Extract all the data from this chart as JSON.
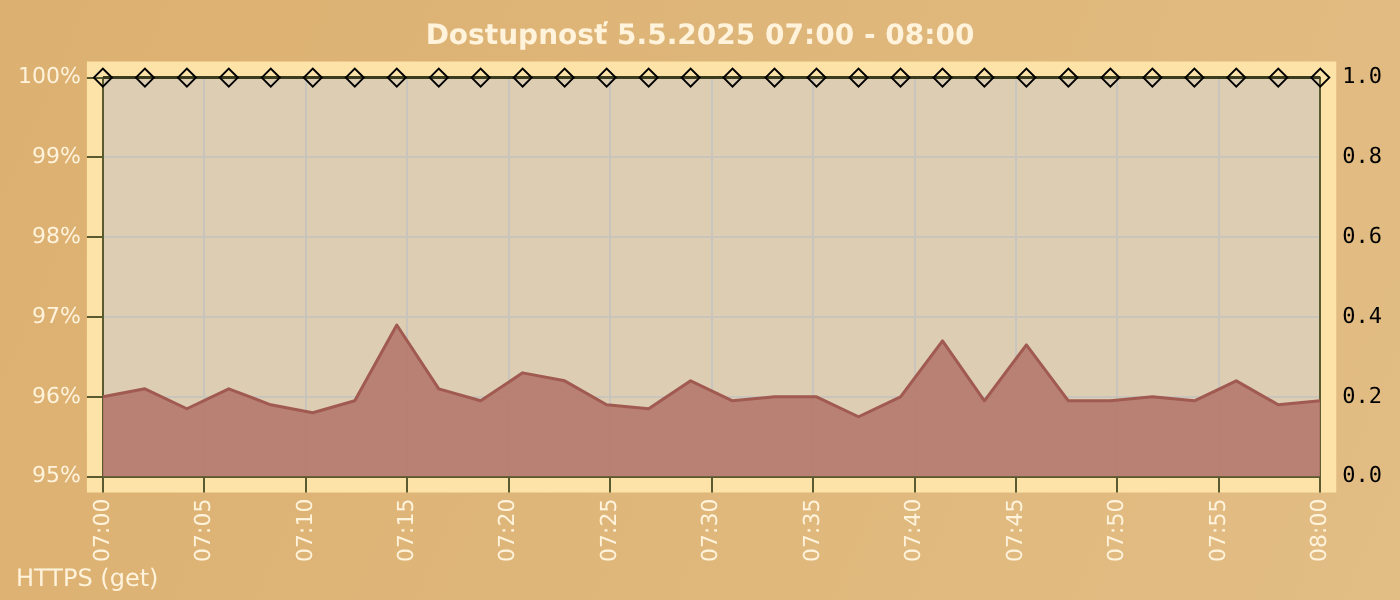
{
  "chart_data": {
    "type": "line",
    "title": "Dostupnosť 5.5.2025 07:00 - 08:00",
    "annotations": [
      "HTTPS (get)"
    ],
    "x": [
      7,
      7.0345,
      7.069,
      7.1034,
      7.1379,
      7.1724,
      7.2069,
      7.2414,
      7.2759,
      7.3103,
      7.3448,
      7.3793,
      7.4138,
      7.4483,
      7.4828,
      7.5172,
      7.5517,
      7.5862,
      7.6207,
      7.6552,
      7.6897,
      7.7241,
      7.7586,
      7.7931,
      7.8276,
      7.8621,
      7.8966,
      7.931,
      7.9655,
      8
    ],
    "series": [
      {
        "axis": "y",
        "marker": "diamond",
        "color": "#3c3c1e",
        "values": [
          100,
          100,
          100,
          100,
          100,
          100,
          100,
          100,
          100,
          100,
          100,
          100,
          100,
          100,
          100,
          100,
          100,
          100,
          100,
          100,
          100,
          100,
          100,
          100,
          100,
          100,
          100,
          100,
          100,
          100
        ]
      },
      {
        "type": "area",
        "axis": "y2",
        "marker": "none",
        "color": "#b5796c",
        "values": [
          0.2,
          0.22,
          0.17,
          0.22,
          0.18,
          0.16,
          0.19,
          0.38,
          0.22,
          0.19,
          0.26,
          0.24,
          0.18,
          0.17,
          0.24,
          0.19,
          0.2,
          0.2,
          0.15,
          0.2,
          0.34,
          0.19,
          0.33,
          0.19,
          0.19,
          0.2,
          0.19,
          0.24,
          0.18,
          0.19
        ]
      }
    ],
    "xlim": [
      7,
      8
    ],
    "xticks": [
      {
        "value": 7,
        "label": "07:00"
      },
      {
        "value": 7.0833,
        "label": "07:05"
      },
      {
        "value": 7.1667,
        "label": "07:10"
      },
      {
        "value": 7.25,
        "label": "07:15"
      },
      {
        "value": 7.3333,
        "label": "07:20"
      },
      {
        "value": 7.4167,
        "label": "07:25"
      },
      {
        "value": 7.5,
        "label": "07:30"
      },
      {
        "value": 7.5833,
        "label": "07:35"
      },
      {
        "value": 7.6667,
        "label": "07:40"
      },
      {
        "value": 7.75,
        "label": "07:45"
      },
      {
        "value": 7.8333,
        "label": "07:50"
      },
      {
        "value": 7.9167,
        "label": "07:55"
      },
      {
        "value": 8,
        "label": "08:00"
      }
    ],
    "ylim": [
      95,
      100
    ],
    "yticks": [
      {
        "value": 95,
        "label": "95%"
      },
      {
        "value": 96,
        "label": "96%"
      },
      {
        "value": 97,
        "label": "97%"
      },
      {
        "value": 98,
        "label": "98%"
      },
      {
        "value": 99,
        "label": "99%"
      },
      {
        "value": 100,
        "label": "100%"
      }
    ],
    "y2lim": [
      0,
      1
    ],
    "y2ticks": [
      {
        "value": 0,
        "label": "0.0"
      },
      {
        "value": 0.2,
        "label": "0.2"
      },
      {
        "value": 0.4,
        "label": "0.4"
      },
      {
        "value": 0.6,
        "label": "0.6"
      },
      {
        "value": 0.8,
        "label": "0.8"
      },
      {
        "value": 1,
        "label": "1.0"
      }
    ],
    "grid": true
  }
}
